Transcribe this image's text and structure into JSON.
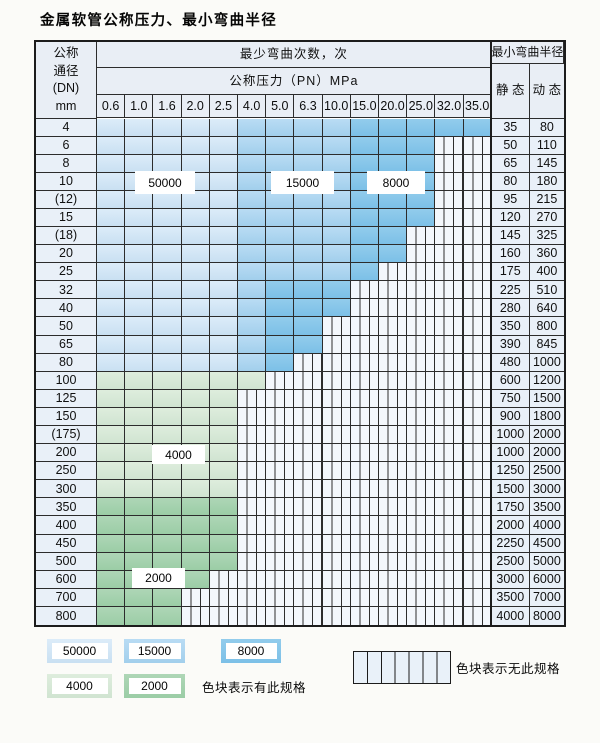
{
  "title": "金属软管公称压力、最小弯曲半径",
  "table": {
    "header": {
      "dn_lines": [
        "公称",
        "通径",
        "(DN)",
        "mm"
      ],
      "bend_title": "最少弯曲次数，次",
      "pressure_title": "公称压力（PN）MPa",
      "pressures": [
        "0.6",
        "1.0",
        "1.6",
        "2.0",
        "2.5",
        "4.0",
        "5.0",
        "6.3",
        "10.0",
        "15.0",
        "20.0",
        "25.0",
        "32.0",
        "35.0"
      ],
      "radius_title": "最小弯曲半径",
      "static_label": "静 态",
      "dynamic_label": "动 态"
    },
    "cell_code_legend": {
      "L": "50000",
      "M": "15000",
      "D": "8000",
      "G": "4000",
      "E": "2000",
      "H": "无此规格"
    },
    "rows": [
      {
        "dn": "4",
        "cells": "LLLLLMMMMDDDDD",
        "static": "35",
        "dynamic": "80"
      },
      {
        "dn": "6",
        "cells": "LLLLLMMMMDDDHH",
        "static": "50",
        "dynamic": "110"
      },
      {
        "dn": "8",
        "cells": "LLLLLMMMMDDDHH",
        "static": "65",
        "dynamic": "145"
      },
      {
        "dn": "10",
        "cells": "LLLLLMMMMDDDHH",
        "static": "80",
        "dynamic": "180"
      },
      {
        "dn": "(12)",
        "cells": "LLLLLMMMMDDDHH",
        "static": "95",
        "dynamic": "215"
      },
      {
        "dn": "15",
        "cells": "LLLLLMMMMDDDHH",
        "static": "120",
        "dynamic": "270"
      },
      {
        "dn": "(18)",
        "cells": "LLLLLMMMMDDHHH",
        "static": "145",
        "dynamic": "325"
      },
      {
        "dn": "20",
        "cells": "LLLLLMMMMDDHHH",
        "static": "160",
        "dynamic": "360"
      },
      {
        "dn": "25",
        "cells": "LLLLLMMMMDHHHH",
        "static": "175",
        "dynamic": "400"
      },
      {
        "dn": "32",
        "cells": "LLLLLMDDDHHHHH",
        "static": "225",
        "dynamic": "510"
      },
      {
        "dn": "40",
        "cells": "LLLLLMDDDHHHHH",
        "static": "280",
        "dynamic": "640"
      },
      {
        "dn": "50",
        "cells": "LLLLLMDDHHHHHH",
        "static": "350",
        "dynamic": "800"
      },
      {
        "dn": "65",
        "cells": "LLLLLMDDHHHHHH",
        "static": "390",
        "dynamic": "845"
      },
      {
        "dn": "80",
        "cells": "LLLLLMDHHHHHHH",
        "static": "480",
        "dynamic": "1000"
      },
      {
        "dn": "100",
        "cells": "GGGGGGHHHHHHHH",
        "static": "600",
        "dynamic": "1200"
      },
      {
        "dn": "125",
        "cells": "GGGGGHHHHHHHHH",
        "static": "750",
        "dynamic": "1500"
      },
      {
        "dn": "150",
        "cells": "GGGGGHHHHHHHHH",
        "static": "900",
        "dynamic": "1800"
      },
      {
        "dn": "(175)",
        "cells": "GGGGGHHHHHHHHH",
        "static": "1000",
        "dynamic": "2000"
      },
      {
        "dn": "200",
        "cells": "GGGGGHHHHHHHHH",
        "static": "1000",
        "dynamic": "2000"
      },
      {
        "dn": "250",
        "cells": "GGGGGHHHHHHHHH",
        "static": "1250",
        "dynamic": "2500"
      },
      {
        "dn": "300",
        "cells": "GGGGGHHHHHHHHH",
        "static": "1500",
        "dynamic": "3000"
      },
      {
        "dn": "350",
        "cells": "EEEEEHHHHHHHHH",
        "static": "1750",
        "dynamic": "3500"
      },
      {
        "dn": "400",
        "cells": "EEEEEHHHHHHHHH",
        "static": "2000",
        "dynamic": "4000"
      },
      {
        "dn": "450",
        "cells": "EEEEEHHHHHHHHH",
        "static": "2250",
        "dynamic": "4500"
      },
      {
        "dn": "500",
        "cells": "EEEEEHHHHHHHHH",
        "static": "2500",
        "dynamic": "5000"
      },
      {
        "dn": "600",
        "cells": "EEEEHHHHHHHHHH",
        "static": "3000",
        "dynamic": "6000"
      },
      {
        "dn": "700",
        "cells": "EEEHHHHHHHHHHH",
        "static": "3500",
        "dynamic": "7000"
      },
      {
        "dn": "800",
        "cells": "EEEHHHHHHHHHHH",
        "static": "4000",
        "dynamic": "8000"
      }
    ],
    "region_labels": [
      "50000",
      "15000",
      "8000",
      "4000",
      "2000"
    ]
  },
  "legend": {
    "items": [
      {
        "label": "50000",
        "code": "L"
      },
      {
        "label": "15000",
        "code": "M"
      },
      {
        "label": "8000",
        "code": "D"
      },
      {
        "label": "4000",
        "code": "G"
      },
      {
        "label": "2000",
        "code": "E"
      }
    ],
    "present_note": "色块表示有此规格",
    "absent_note": "色块表示无此规格"
  },
  "colors": {
    "light_blue": "#d2e6f6",
    "medium_blue": "#add5f0",
    "dark_blue": "#87c6e9",
    "light_green": "#d7e9d7",
    "medium_green": "#a4d1ae",
    "hatch_bg": "#f3f7fc",
    "hatch_line": "#2e2e2e",
    "grid_line": "#2c2c2c",
    "label_cell_bg": "#e9f0f8",
    "header_bg": "#e9eef5",
    "page_bg": "#fbfbf8"
  }
}
